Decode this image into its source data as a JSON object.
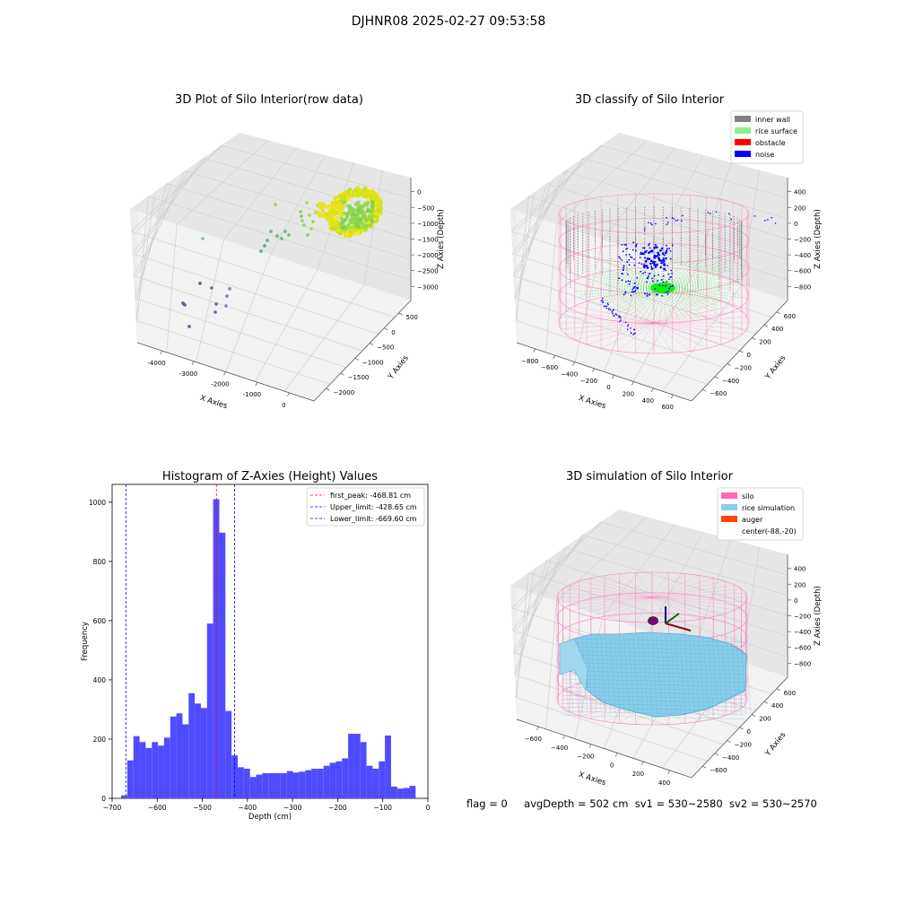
{
  "figure_title": "DJHNR08 2025-02-27 09:53:58",
  "status_bar": {
    "flag": "flag = 0",
    "avg_depth": "avgDepth = 502 cm",
    "sv1": "sv1 = 530~2580",
    "sv2": "sv2 = 530~2570"
  },
  "colors": {
    "histogram_bar": "#4f4cff",
    "first_peak_line": "#ff0000",
    "limit_line": "#0000ff",
    "inner_wall": "#808080",
    "rice_surface": "#90ee90",
    "obstacle": "#ff0000",
    "noise": "#0000ff",
    "silo": "#ff69b4",
    "rice_simulation": "#87ceeb",
    "auger": "#ff4500"
  },
  "chart_data": [
    {
      "type": "scatter",
      "projection": "3d",
      "title": "3D Plot of Silo Interior(row data)",
      "xlabel": "X Axies",
      "ylabel": "Y Axies",
      "zlabel": "Z Axies (Depth)",
      "xticks": [
        "-4000",
        "-3000",
        "-2000",
        "-1000",
        "0"
      ],
      "yticks": [
        "500",
        "0",
        "−500",
        "−1000",
        "−1500",
        "−2000"
      ],
      "zticks": [
        "0",
        "−500",
        "−1000",
        "−1500",
        "−2000",
        "−2500",
        "−3000"
      ],
      "xlim": [
        -4300,
        500
      ],
      "ylim": [
        -2100,
        700
      ],
      "zlim": [
        -3300,
        200
      ],
      "colormap": "viridis (by depth)"
    },
    {
      "type": "scatter",
      "projection": "3d",
      "title": "3D classify of Silo Interior",
      "xlabel": "X Axies",
      "ylabel": "Y Axies",
      "zlabel": "Z Axies (Depth)",
      "xticks": [
        "−800",
        "−600",
        "−400",
        "−200",
        "0",
        "200",
        "400",
        "600"
      ],
      "yticks": [
        "600",
        "400",
        "200",
        "0",
        "−200",
        "−400",
        "−600"
      ],
      "zticks": [
        "400",
        "200",
        "0",
        "−200",
        "−400",
        "−600",
        "−800"
      ],
      "legend": [
        "inner wall",
        "rice surface",
        "obstacle",
        "noise"
      ],
      "legend_position": "top-right"
    },
    {
      "type": "bar",
      "title": "Histogram of Z-Axies (Height) Values",
      "xlabel": "Depth (cm)",
      "ylabel": "Frequency",
      "xlim": [
        -700,
        0
      ],
      "ylim": [
        0,
        1060
      ],
      "xticks": [
        "−700",
        "−600",
        "−500",
        "−400",
        "−300",
        "−200",
        "−100",
        "0"
      ],
      "yticks": [
        "0",
        "200",
        "400",
        "600",
        "800",
        "1000"
      ],
      "bin_start": -680,
      "bin_width": 13.6,
      "values": [
        10,
        128,
        210,
        190,
        170,
        190,
        178,
        205,
        276,
        287,
        250,
        355,
        320,
        305,
        590,
        1010,
        897,
        295,
        145,
        105,
        100,
        72,
        80,
        85,
        85,
        85,
        85,
        92,
        87,
        90,
        95,
        100,
        100,
        110,
        120,
        125,
        135,
        218,
        218,
        190,
        110,
        100,
        125,
        212,
        40,
        33,
        35,
        42
      ],
      "vlines": [
        {
          "label": "first_peak: -468.81 cm",
          "x": -468.81,
          "color": "#ff0000"
        },
        {
          "label": "Upper_limit: -428.65 cm",
          "x": -428.65,
          "color": "#0000ff"
        },
        {
          "label": "Lower_limit: -669.60 cm",
          "x": -669.6,
          "color": "#0000ff"
        }
      ],
      "legend_position": "top-right"
    },
    {
      "type": "surface",
      "projection": "3d",
      "title": "3D simulation of Silo Interior",
      "xlabel": "X Axies",
      "ylabel": "Y Axies",
      "zlabel": "Z Axies (Depth)",
      "xticks": [
        "−600",
        "−400",
        "−200",
        "0",
        "200",
        "400"
      ],
      "yticks": [
        "600",
        "400",
        "200",
        "0",
        "−200",
        "−400",
        "−600"
      ],
      "zticks": [
        "400",
        "200",
        "0",
        "−200",
        "−400",
        "−600",
        "−800"
      ],
      "legend": [
        "silo",
        "rice simulation",
        "auger",
        "center(-88,-20)"
      ],
      "legend_position": "top-right"
    }
  ]
}
